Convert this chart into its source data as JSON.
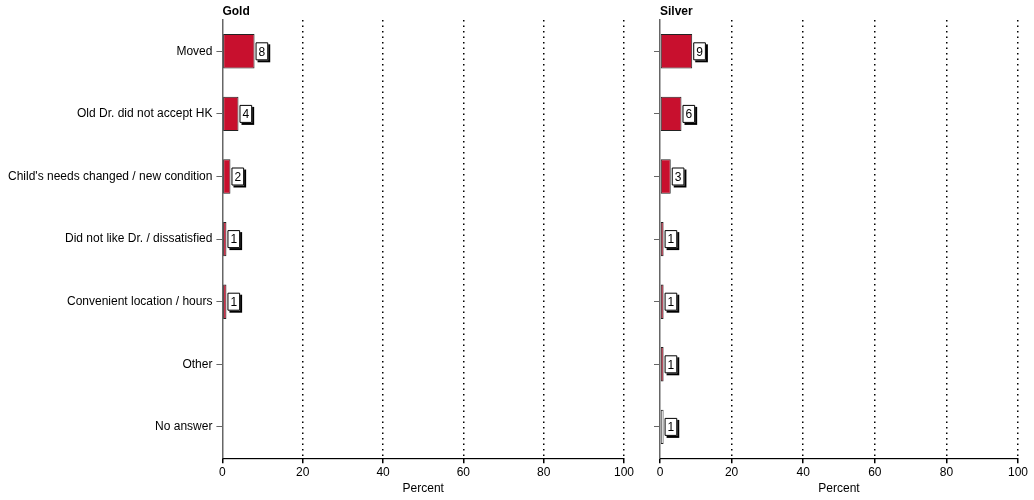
{
  "chart_data": [
    {
      "type": "bar",
      "orientation": "horizontal",
      "title": "Gold",
      "xlabel": "Percent",
      "categories": [
        "Moved",
        "Old Dr. did not accept HK",
        "Child's needs changed / new condition",
        "Did not like Dr. / dissatisfied",
        "Convenient location / hours",
        "Other",
        "No answer"
      ],
      "values": [
        8,
        4,
        2,
        1,
        1,
        null,
        null
      ],
      "colors": [
        "#c8102e",
        "#c8102e",
        "#c8102e",
        "#c8102e",
        "#c8102e",
        "#c8102e",
        "#c8102e"
      ],
      "xlim": [
        0,
        100
      ],
      "xticks": [
        0,
        20,
        40,
        60,
        80,
        100
      ],
      "grid": "x",
      "legend": false,
      "data_labels": true
    },
    {
      "type": "bar",
      "orientation": "horizontal",
      "title": "Silver",
      "xlabel": "Percent",
      "categories": [
        null,
        null,
        null,
        null,
        null,
        null,
        null
      ],
      "values": [
        9,
        6,
        3,
        1,
        1,
        1,
        1
      ],
      "colors": [
        "#c8102e",
        "#c8102e",
        "#c8102e",
        "#c8102e",
        "#c8102e",
        "#c8102e",
        "#ffffff"
      ],
      "xlim": [
        0,
        100
      ],
      "xticks": [
        0,
        20,
        40,
        60,
        80,
        100
      ],
      "grid": "x",
      "legend": false,
      "data_labels": true
    }
  ]
}
